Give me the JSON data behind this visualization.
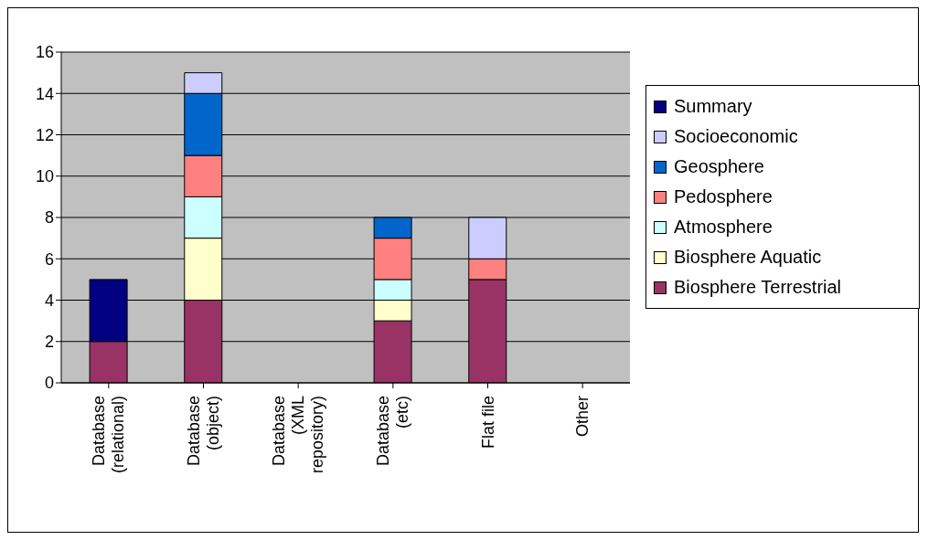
{
  "chart_data": {
    "type": "bar",
    "stacked": true,
    "categories": [
      "Database (relational)",
      "Database (object)",
      "Database (XML repository)",
      "Database (etc)",
      "Flat file",
      "Other"
    ],
    "series": [
      {
        "name": "Biosphere Terrestrial",
        "color": "#993366",
        "values": [
          2,
          4,
          null,
          3,
          5,
          null
        ]
      },
      {
        "name": "Biosphere Aquatic",
        "color": "#ffffcc",
        "values": [
          null,
          3,
          null,
          1,
          null,
          null
        ]
      },
      {
        "name": "Atmosphere",
        "color": "#ccffff",
        "values": [
          null,
          2,
          null,
          1,
          null,
          null
        ]
      },
      {
        "name": "Pedosphere",
        "color": "#ff8080",
        "values": [
          null,
          2,
          null,
          2,
          1,
          null
        ]
      },
      {
        "name": "Geosphere",
        "color": "#0066cc",
        "values": [
          null,
          3,
          null,
          1,
          null,
          null
        ]
      },
      {
        "name": "Socioeconomic",
        "color": "#ccccff",
        "values": [
          null,
          1,
          null,
          null,
          2,
          null
        ]
      },
      {
        "name": "Summary",
        "color": "#000080",
        "values": [
          3,
          null,
          null,
          null,
          null,
          null
        ]
      }
    ],
    "ylim": [
      0,
      16
    ],
    "yticks": [
      0,
      2,
      4,
      6,
      8,
      10,
      12,
      14,
      16
    ],
    "grid": "y",
    "legend": "right"
  }
}
